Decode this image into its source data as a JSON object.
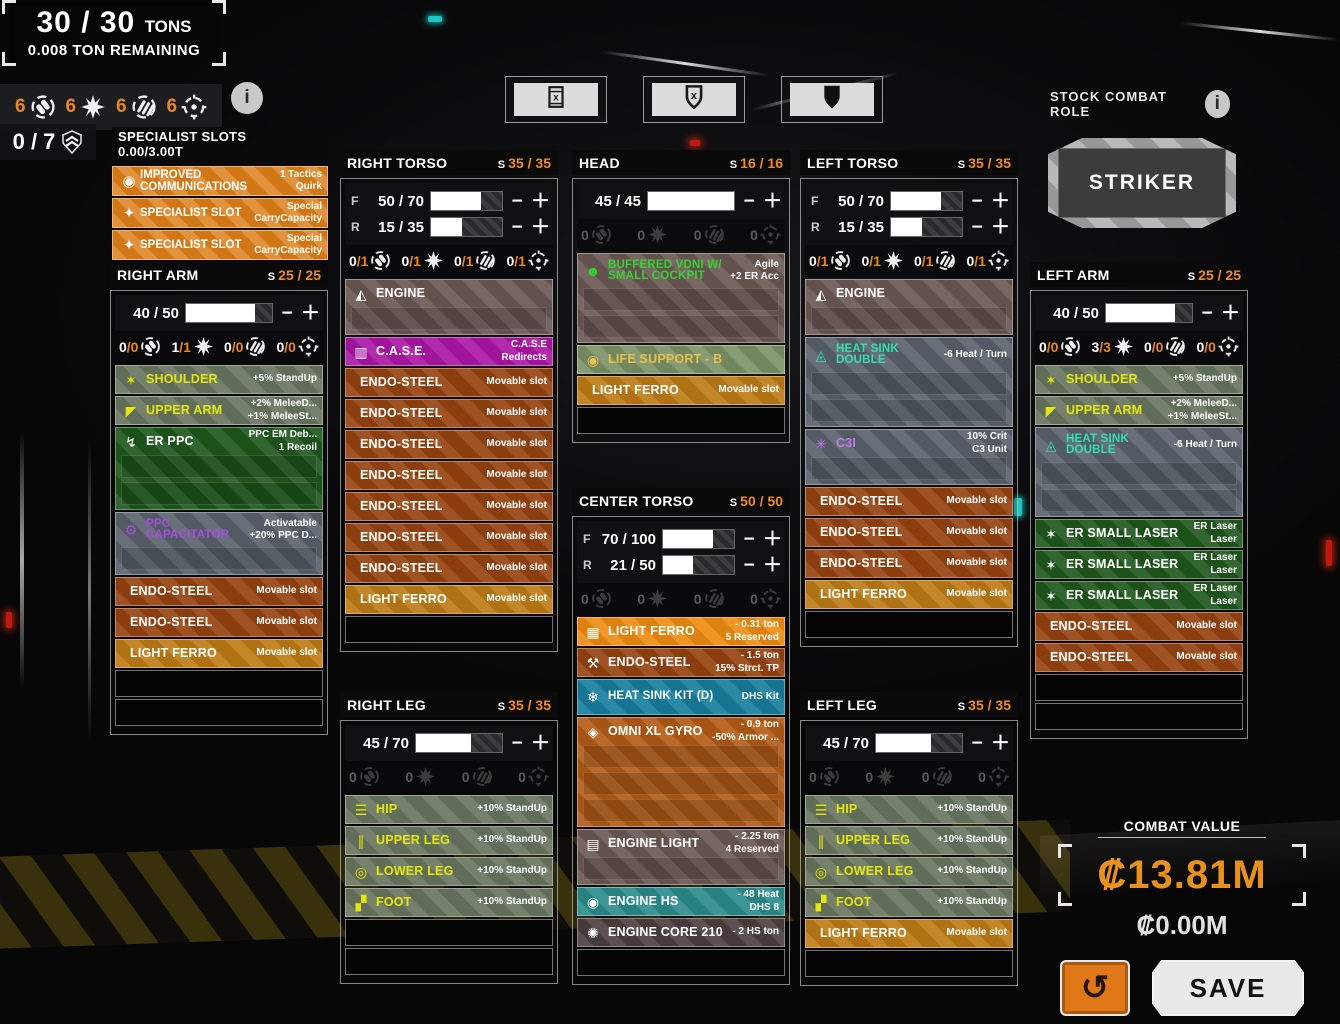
{
  "tonnage": {
    "value": "30 / 30",
    "unit": "TONS",
    "remaining": "0.008 TON REMAINING"
  },
  "hardpoint_summary": {
    "counts": [
      {
        "type": "ballistic",
        "value": "6"
      },
      {
        "type": "energy",
        "value": "6"
      },
      {
        "type": "missile",
        "value": "6"
      },
      {
        "type": "targeting",
        "value": "6"
      }
    ]
  },
  "upgrade_counter": {
    "value": "0 / 7"
  },
  "specialist": {
    "title": "SPECIALIST SLOTS",
    "subtitle": "0.00/3.00T",
    "rows": [
      {
        "label": "IMPROVED COMMUNICATIONS",
        "icon": "comms-icon",
        "right": [
          "1 Tactics",
          "Quirk"
        ]
      },
      {
        "label": "SPECIALIST SLOT",
        "icon": "specialist-icon",
        "right": [
          "Special",
          "CarryCapacity"
        ]
      },
      {
        "label": "SPECIALIST SLOT",
        "icon": "specialist-icon",
        "right": [
          "Special",
          "CarryCapacity"
        ]
      }
    ]
  },
  "top_buttons": [
    {
      "name": "strip-equipment-button",
      "icon": "equipment-box-x-icon"
    },
    {
      "name": "strip-armor-button",
      "icon": "shield-x-icon"
    },
    {
      "name": "max-armor-button",
      "icon": "shield-filled-icon"
    }
  ],
  "combat_role": {
    "label": "STOCK COMBAT ROLE",
    "value": "STRIKER"
  },
  "combat_value": {
    "label": "COMBAT VALUE",
    "value": "₡13.81M",
    "secondary": "₡0.00M"
  },
  "buttons": {
    "save": "SAVE",
    "undo": "↺"
  },
  "columns": [
    {
      "id": "right-torso",
      "title": "RIGHT TORSO",
      "structure_prefix": "S",
      "structure": "35 / 35",
      "armor": [
        {
          "label": "F",
          "value": "50 / 70",
          "pct": 71
        },
        {
          "label": "R",
          "value": "15 / 35",
          "pct": 43
        }
      ],
      "hardpoints": {
        "dimmed": false,
        "counts": [
          "0/1",
          "0/1",
          "0/1",
          "0/1"
        ]
      },
      "slots": [
        {
          "label": "ENGINE",
          "kind": "engine",
          "icon": "engine-icon",
          "right": [],
          "rows": 2
        },
        {
          "label": "C.A.S.E.",
          "kind": "case",
          "icon": "case-icon",
          "right": [
            "C.A.S.E",
            "Redirects"
          ]
        },
        {
          "label": "ENDO-STEEL",
          "kind": "endo",
          "right": [
            "Movable slot"
          ]
        },
        {
          "label": "ENDO-STEEL",
          "kind": "endo",
          "right": [
            "Movable slot"
          ]
        },
        {
          "label": "ENDO-STEEL",
          "kind": "endo",
          "right": [
            "Movable slot"
          ]
        },
        {
          "label": "ENDO-STEEL",
          "kind": "endo",
          "right": [
            "Movable slot"
          ]
        },
        {
          "label": "ENDO-STEEL",
          "kind": "endo",
          "right": [
            "Movable slot"
          ]
        },
        {
          "label": "ENDO-STEEL",
          "kind": "endo",
          "right": [
            "Movable slot"
          ]
        },
        {
          "label": "ENDO-STEEL",
          "kind": "endo",
          "right": [
            "Movable slot"
          ]
        },
        {
          "label": "LIGHT FERRO",
          "kind": "ferro",
          "right": [
            "Movable slot"
          ]
        },
        {
          "empty": true
        }
      ]
    },
    {
      "id": "head",
      "title": "HEAD",
      "structure_prefix": "S",
      "structure": "16 / 16",
      "armor": [
        {
          "label": "",
          "value": "45 / 45",
          "pct": 100
        }
      ],
      "hardpoints": {
        "dimmed": true,
        "counts": [
          "0",
          "0",
          "0",
          "0"
        ]
      },
      "slots": [
        {
          "label": "BUFFERED VDNI W/ SMALL COCKPIT",
          "kind": "engine",
          "labelColor": "green",
          "icon": "cockpit-icon",
          "right": [
            "Agile",
            "+2 ER Acc"
          ],
          "rows": 3,
          "twoLine": true
        },
        {
          "label": "LIFE SUPPORT - B",
          "kind": "life",
          "labelColor": "gold",
          "icon": "life-support-icon",
          "right": []
        },
        {
          "label": "LIGHT FERRO",
          "kind": "ferro",
          "right": [
            "Movable slot"
          ]
        },
        {
          "empty": true
        }
      ]
    },
    {
      "id": "center-torso",
      "title": "CENTER TORSO",
      "structure_prefix": "S",
      "structure": "50 / 50",
      "armor": [
        {
          "label": "F",
          "value": "70 / 100",
          "pct": 70
        },
        {
          "label": "R",
          "value": "21 / 50",
          "pct": 42
        }
      ],
      "hardpoints": {
        "dimmed": true,
        "counts": [
          "0",
          "0",
          "0",
          "0"
        ]
      },
      "slots": [
        {
          "label": "LIGHT FERRO",
          "kind": "ferrohl",
          "icon": "light-ferro-icon",
          "right": [
            "- 0.31 ton",
            "5 Reserved"
          ]
        },
        {
          "label": "ENDO-STEEL",
          "kind": "endo",
          "icon": "endo-steel-icon",
          "right": [
            "- 1.5 ton",
            "15% Strct. TP"
          ]
        },
        {
          "label": "HEAT SINK KIT (D)",
          "kind": "teal",
          "icon": "heat-sink-kit-icon",
          "right": [
            "DHS Kit"
          ],
          "twoLine": true
        },
        {
          "label": "OMNI XL GYRO",
          "kind": "gyro",
          "icon": "gyro-icon",
          "right": [
            "- 0.9 ton",
            "-50% Armor ..."
          ],
          "rows": 4
        },
        {
          "label": "ENGINE LIGHT",
          "kind": "engine",
          "icon": "engine-light-icon",
          "right": [
            "- 2.25 ton",
            "4 Reserved"
          ],
          "rows": 2
        },
        {
          "label": "ENGINE HS",
          "kind": "teal2",
          "icon": "engine-hs-icon",
          "right": [
            "- 48 Heat",
            "DHS 8"
          ]
        },
        {
          "label": "ENGINE CORE 210",
          "kind": "core",
          "icon": "engine-core-icon",
          "right": [
            "- 2 HS ton"
          ]
        },
        {
          "empty": true
        }
      ]
    },
    {
      "id": "left-torso",
      "title": "LEFT TORSO",
      "structure_prefix": "S",
      "structure": "35 / 35",
      "armor": [
        {
          "label": "F",
          "value": "50 / 70",
          "pct": 71
        },
        {
          "label": "R",
          "value": "15 / 35",
          "pct": 43
        }
      ],
      "hardpoints": {
        "dimmed": false,
        "counts": [
          "0/1",
          "0/1",
          "0/1",
          "0/1"
        ]
      },
      "slots": [
        {
          "label": "ENGINE",
          "kind": "engine",
          "icon": "engine-icon",
          "right": [],
          "rows": 2
        },
        {
          "label": "HEAT SINK DOUBLE",
          "kind": "equip",
          "labelColor": "teal",
          "icon": "heat-sink-icon",
          "right": [
            "-6 Heat / Turn"
          ],
          "rows": 3,
          "twoLine": true
        },
        {
          "label": "C3I",
          "kind": "equip",
          "labelColor": "violet",
          "icon": "c3i-icon",
          "right": [
            "10% Crit",
            "C3 Unit"
          ],
          "rows": 2
        },
        {
          "label": "ENDO-STEEL",
          "kind": "endo",
          "right": [
            "Movable slot"
          ]
        },
        {
          "label": "ENDO-STEEL",
          "kind": "endo",
          "right": [
            "Movable slot"
          ]
        },
        {
          "label": "ENDO-STEEL",
          "kind": "endo",
          "right": [
            "Movable slot"
          ]
        },
        {
          "label": "LIGHT FERRO",
          "kind": "ferro",
          "right": [
            "Movable slot"
          ]
        },
        {
          "empty": true
        }
      ]
    },
    {
      "id": "right-arm",
      "title": "RIGHT ARM",
      "structure_prefix": "S",
      "structure": "25 / 25",
      "armor": [
        {
          "label": "",
          "value": "40 / 50",
          "pct": 80
        }
      ],
      "hardpoints": {
        "dimmed": false,
        "counts": [
          "0/0",
          "1/1",
          "0/0",
          "0/0"
        ]
      },
      "slots": [
        {
          "label": "SHOULDER",
          "kind": "actuator",
          "labelColor": "yellow",
          "icon": "shoulder-icon",
          "right": [
            "+5% StandUp"
          ]
        },
        {
          "label": "UPPER ARM",
          "kind": "actuator",
          "labelColor": "yellow",
          "icon": "upper-arm-icon",
          "right": [
            "+2% MeleeD...",
            "+1% MeleeSt..."
          ]
        },
        {
          "label": "ER PPC",
          "kind": "weapon",
          "icon": "ppc-icon",
          "right": [
            "PPC EM Deb...",
            "1 Recoil"
          ],
          "rows": 3
        },
        {
          "label": "PPC CAPACITATOR",
          "kind": "equip",
          "labelColor": "purple",
          "icon": "capacitor-icon",
          "right": [
            "Activatable",
            "+20% PPC D..."
          ],
          "rows": 2,
          "twoLine": true
        },
        {
          "label": "ENDO-STEEL",
          "kind": "endo",
          "right": [
            "Movable slot"
          ]
        },
        {
          "label": "ENDO-STEEL",
          "kind": "endo",
          "right": [
            "Movable slot"
          ]
        },
        {
          "label": "LIGHT FERRO",
          "kind": "ferro",
          "right": [
            "Movable slot"
          ]
        },
        {
          "empty": true
        },
        {
          "empty": true
        }
      ]
    },
    {
      "id": "left-arm",
      "title": "LEFT ARM",
      "structure_prefix": "S",
      "structure": "25 / 25",
      "armor": [
        {
          "label": "",
          "value": "40 / 50",
          "pct": 80
        }
      ],
      "hardpoints": {
        "dimmed": false,
        "counts": [
          "0/0",
          "3/3",
          "0/0",
          "0/0"
        ]
      },
      "slots": [
        {
          "label": "SHOULDER",
          "kind": "actuator",
          "labelColor": "yellow",
          "icon": "shoulder-icon",
          "right": [
            "+5% StandUp"
          ]
        },
        {
          "label": "UPPER ARM",
          "kind": "actuator",
          "labelColor": "yellow",
          "icon": "upper-arm-icon",
          "right": [
            "+2% MeleeD...",
            "+1% MeleeSt..."
          ]
        },
        {
          "label": "HEAT SINK DOUBLE",
          "kind": "equip",
          "labelColor": "teal",
          "icon": "heat-sink-icon",
          "right": [
            "-6 Heat / Turn"
          ],
          "rows": 3,
          "twoLine": true
        },
        {
          "label": "ER SMALL LASER",
          "kind": "weapon",
          "icon": "laser-icon",
          "right": [
            "ER Laser",
            "Laser"
          ]
        },
        {
          "label": "ER SMALL LASER",
          "kind": "weapon",
          "icon": "laser-icon",
          "right": [
            "ER Laser",
            "Laser"
          ]
        },
        {
          "label": "ER SMALL LASER",
          "kind": "weapon",
          "icon": "laser-icon",
          "right": [
            "ER Laser",
            "Laser"
          ]
        },
        {
          "label": "ENDO-STEEL",
          "kind": "endo",
          "right": [
            "Movable slot"
          ]
        },
        {
          "label": "ENDO-STEEL",
          "kind": "endo",
          "right": [
            "Movable slot"
          ]
        },
        {
          "empty": true
        },
        {
          "empty": true
        }
      ]
    },
    {
      "id": "right-leg",
      "title": "RIGHT LEG",
      "structure_prefix": "S",
      "structure": "35 / 35",
      "armor": [
        {
          "label": "",
          "value": "45 / 70",
          "pct": 64
        }
      ],
      "hardpoints": {
        "dimmed": true,
        "counts": [
          "0",
          "0",
          "0",
          "0"
        ]
      },
      "slots": [
        {
          "label": "HIP",
          "kind": "actuator",
          "labelColor": "yellow",
          "icon": "hip-icon",
          "right": [
            "+10% StandUp"
          ]
        },
        {
          "label": "UPPER LEG",
          "kind": "actuator",
          "labelColor": "yellow",
          "icon": "upper-leg-icon",
          "right": [
            "+10% StandUp"
          ]
        },
        {
          "label": "LOWER LEG",
          "kind": "actuator",
          "labelColor": "yellow",
          "icon": "lower-leg-icon",
          "right": [
            "+10% StandUp"
          ]
        },
        {
          "label": "FOOT",
          "kind": "actuator",
          "labelColor": "yellow",
          "icon": "foot-icon",
          "right": [
            "+10% StandUp"
          ]
        },
        {
          "empty": true
        },
        {
          "empty": true
        }
      ]
    },
    {
      "id": "left-leg",
      "title": "LEFT LEG",
      "structure_prefix": "S",
      "structure": "35 / 35",
      "armor": [
        {
          "label": "",
          "value": "45 / 70",
          "pct": 64
        }
      ],
      "hardpoints": {
        "dimmed": true,
        "counts": [
          "0",
          "0",
          "0",
          "0"
        ]
      },
      "slots": [
        {
          "label": "HIP",
          "kind": "actuator",
          "labelColor": "yellow",
          "icon": "hip-icon",
          "right": [
            "+10% StandUp"
          ]
        },
        {
          "label": "UPPER LEG",
          "kind": "actuator",
          "labelColor": "yellow",
          "icon": "upper-leg-icon",
          "right": [
            "+10% StandUp"
          ]
        },
        {
          "label": "LOWER LEG",
          "kind": "actuator",
          "labelColor": "yellow",
          "icon": "lower-leg-icon",
          "right": [
            "+10% StandUp"
          ]
        },
        {
          "label": "FOOT",
          "kind": "actuator",
          "labelColor": "yellow",
          "icon": "foot-icon",
          "right": [
            "+10% StandUp"
          ]
        },
        {
          "label": "LIGHT FERRO",
          "kind": "ferro",
          "right": [
            "Movable slot"
          ]
        },
        {
          "empty": true
        }
      ]
    }
  ]
}
